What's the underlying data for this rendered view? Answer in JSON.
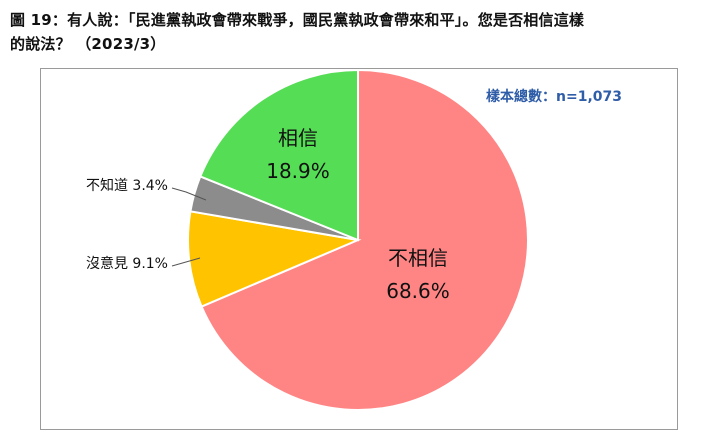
{
  "title": {
    "line1": "圖 19：有人說：「民進黨執政會帶來戰爭，國民黨執政會帶來和平」。您是否相信這樣",
    "line2": "的說法？ （2023/3）"
  },
  "sample_note": "樣本總數：n=1,073",
  "chart_data": {
    "type": "pie",
    "start_angle_deg": 0,
    "direction": "clockwise",
    "slices": [
      {
        "label": "不相信",
        "value": 68.6,
        "value_text": "68.6%",
        "color": "#ff8585",
        "label_style": "inside"
      },
      {
        "label": "沒意見",
        "value": 9.1,
        "value_text": "沒意見 9.1%",
        "color": "#ffc300",
        "label_style": "outside"
      },
      {
        "label": "不知道",
        "value": 3.4,
        "value_text": "不知道 3.4%",
        "color": "#8c8c8c",
        "label_style": "outside"
      },
      {
        "label": "相信",
        "value": 18.9,
        "value_text": "18.9%",
        "color": "#55dd55",
        "label_style": "inside"
      }
    ]
  }
}
